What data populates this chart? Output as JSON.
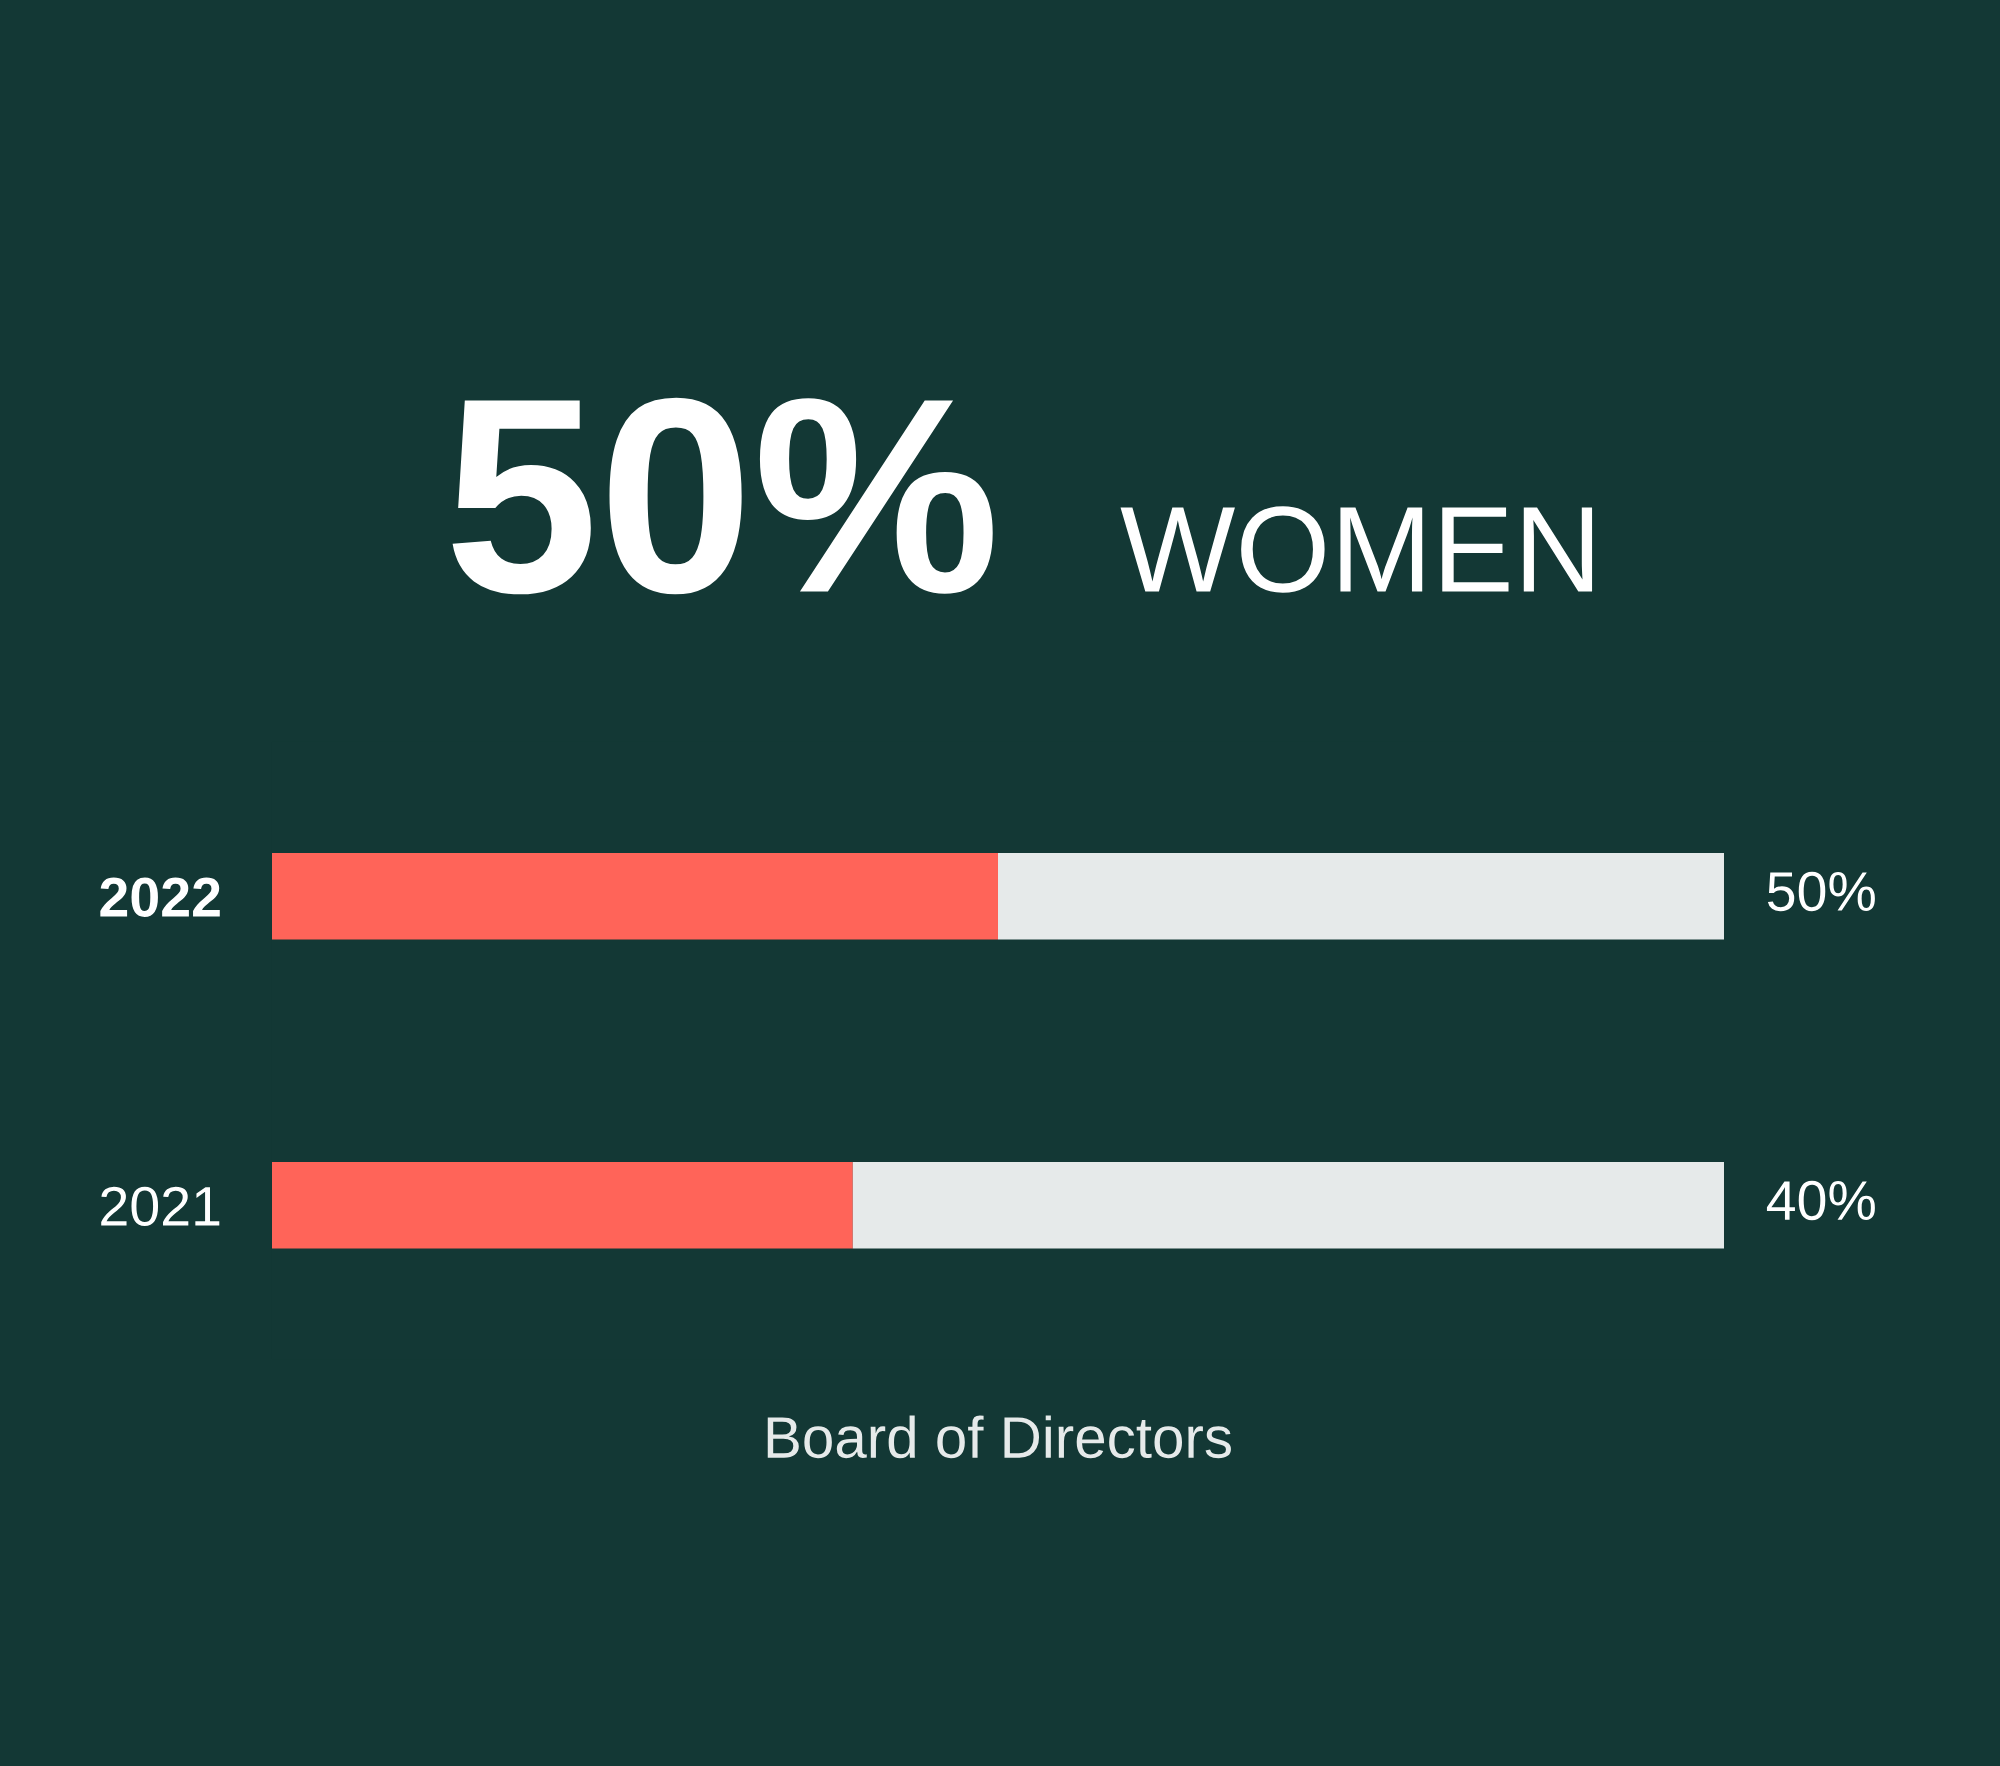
{
  "chart_data": {
    "type": "bar",
    "orientation": "horizontal",
    "stacked": true,
    "title": "50%",
    "subtitle": "WOMEN",
    "xlabel": "Board of Directors",
    "categories": [
      "2022",
      "2021"
    ],
    "series": [
      {
        "color": "#ff6459",
        "values": [
          50,
          40
        ],
        "value_labels": [
          "50%",
          "40%"
        ]
      },
      {
        "color": "#e6eaea",
        "values": [
          50,
          60
        ]
      }
    ],
    "xlim": [
      0,
      100
    ],
    "grid": false,
    "legend": false
  }
}
